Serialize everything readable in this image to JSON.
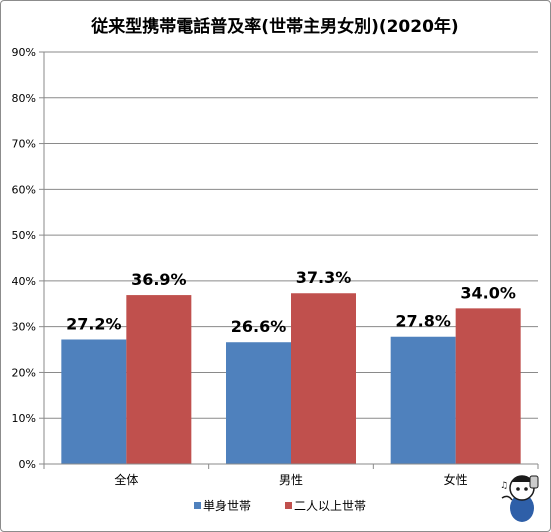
{
  "chart_data": {
    "type": "bar",
    "title": "従来型携帯電話普及率(世帯主男女別)(2020年)",
    "categories": [
      "全体",
      "男性",
      "女性"
    ],
    "series": [
      {
        "name": "単身世帯",
        "values": [
          27.2,
          26.6,
          27.8
        ],
        "color": "#4f81bd"
      },
      {
        "name": "二人以上世帯",
        "values": [
          36.9,
          37.3,
          34.0
        ],
        "color": "#c0504d"
      }
    ],
    "value_labels": [
      [
        "27.2%",
        "26.6%",
        "27.8%"
      ],
      [
        "36.9%",
        "37.3%",
        "34.0%"
      ]
    ],
    "ylim": [
      0,
      90
    ],
    "yticks": [
      "0%",
      "10%",
      "20%",
      "30%",
      "40%",
      "50%",
      "60%",
      "70%",
      "80%",
      "90%"
    ],
    "grid": true,
    "legend_position": "bottom"
  },
  "icons": {
    "corner_mascot": "mascot-illustration-icon"
  }
}
